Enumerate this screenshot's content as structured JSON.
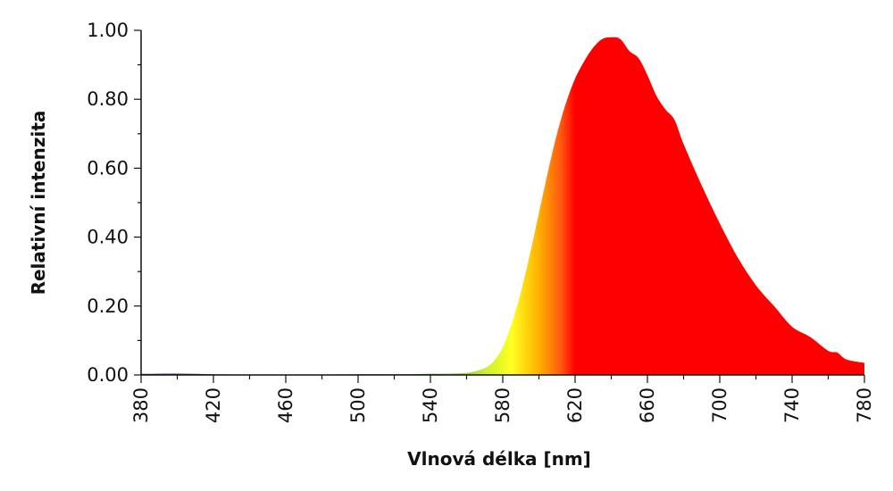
{
  "chart_data": {
    "type": "area",
    "title": "",
    "xlabel": "Vlnová délka [nm]",
    "ylabel": "Relativní intenzita",
    "xlim": [
      380,
      780
    ],
    "ylim": [
      0,
      1.0
    ],
    "grid": false,
    "legend": "none",
    "x_ticks": [
      "380",
      "420",
      "460",
      "500",
      "540",
      "580",
      "620",
      "660",
      "700",
      "740",
      "780"
    ],
    "y_ticks": [
      "0.00",
      "0.20",
      "0.40",
      "0.60",
      "0.80",
      "1.00"
    ],
    "fill_gradient": {
      "colors": [
        "#5a2d91",
        "#2d6b3a",
        "#4a9a3a",
        "#c8f030",
        "#ffff20",
        "#ffb000",
        "#ff5a10",
        "#ff0000",
        "#ff0000"
      ],
      "wavelengths": [
        390,
        470,
        540,
        570,
        585,
        600,
        612,
        620,
        780
      ]
    },
    "series": [
      {
        "x": [
          380,
          400,
          420,
          440,
          460,
          480,
          500,
          520,
          540,
          560,
          570,
          575,
          580,
          585,
          590,
          595,
          600,
          605,
          610,
          615,
          620,
          625,
          630,
          635,
          640,
          645,
          650,
          655,
          660,
          665,
          670,
          675,
          680,
          690,
          700,
          710,
          720,
          730,
          740,
          750,
          760,
          765,
          770,
          780
        ],
        "y": [
          0.003,
          0.004,
          0.002,
          0.001,
          0.001,
          0.001,
          0.002,
          0.002,
          0.003,
          0.006,
          0.02,
          0.04,
          0.08,
          0.15,
          0.24,
          0.35,
          0.47,
          0.59,
          0.7,
          0.79,
          0.86,
          0.91,
          0.95,
          0.975,
          0.98,
          0.975,
          0.94,
          0.92,
          0.87,
          0.81,
          0.77,
          0.74,
          0.67,
          0.55,
          0.44,
          0.34,
          0.26,
          0.2,
          0.14,
          0.11,
          0.07,
          0.065,
          0.045,
          0.035
        ]
      }
    ]
  }
}
